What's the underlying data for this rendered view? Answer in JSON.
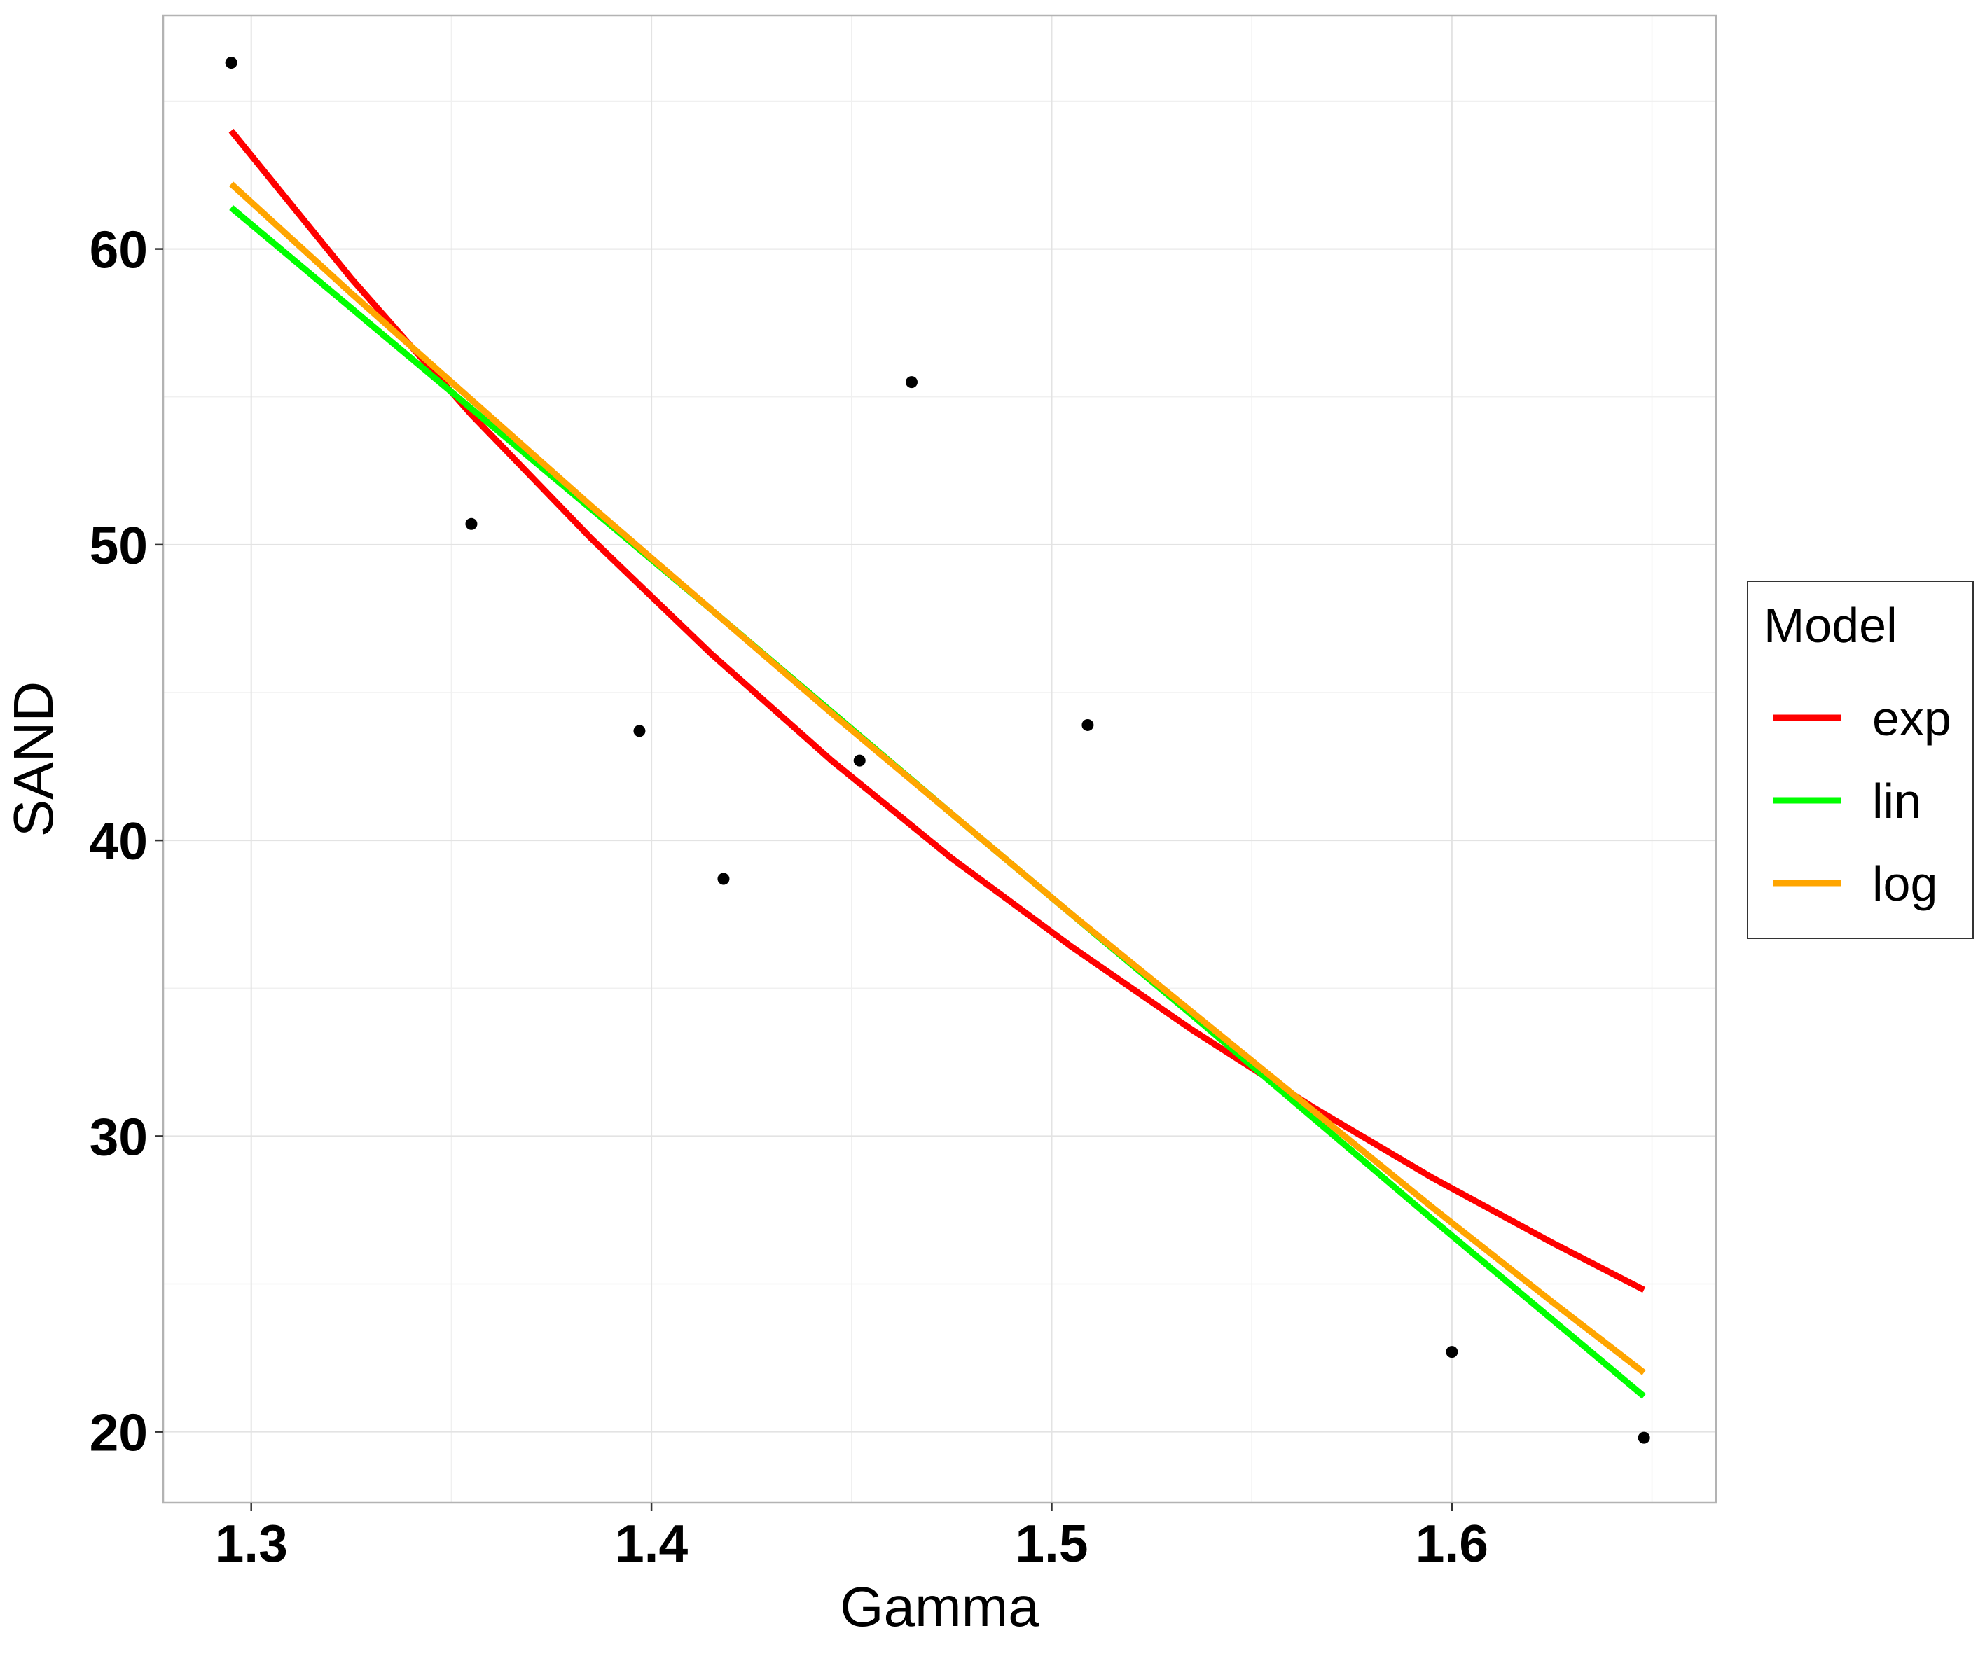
{
  "chart_data": {
    "type": "line",
    "xlabel": "Gamma",
    "ylabel": "SAND",
    "xlim": [
      1.278,
      1.666
    ],
    "ylim": [
      17.6,
      67.9
    ],
    "x_ticks": [
      1.3,
      1.4,
      1.5,
      1.6
    ],
    "x_tick_labels": [
      "1.3",
      "1.4",
      "1.5",
      "1.6"
    ],
    "y_ticks": [
      20,
      30,
      40,
      50,
      60
    ],
    "y_tick_labels": [
      "20",
      "30",
      "40",
      "50",
      "60"
    ],
    "grid": true,
    "legend": {
      "title": "Model",
      "position": "right",
      "entries": [
        {
          "name": "exp",
          "color": "#ff0000"
        },
        {
          "name": "lin",
          "color": "#00ff00"
        },
        {
          "name": "log",
          "color": "#ffa500"
        }
      ]
    },
    "points": {
      "x": [
        1.295,
        1.355,
        1.397,
        1.418,
        1.452,
        1.465,
        1.509,
        1.6,
        1.648
      ],
      "y": [
        66.3,
        50.7,
        43.7,
        38.7,
        42.7,
        55.5,
        43.9,
        22.7,
        19.8
      ]
    },
    "series": [
      {
        "name": "exp",
        "color": "#ff0000",
        "x": [
          1.295,
          1.325,
          1.355,
          1.385,
          1.415,
          1.445,
          1.475,
          1.505,
          1.535,
          1.565,
          1.595,
          1.625,
          1.648
        ],
        "y": [
          64.0,
          59.0,
          54.4,
          50.2,
          46.3,
          42.7,
          39.4,
          36.4,
          33.6,
          31.0,
          28.6,
          26.4,
          24.8
        ]
      },
      {
        "name": "lin",
        "color": "#00ff00",
        "x": [
          1.295,
          1.355,
          1.415,
          1.475,
          1.535,
          1.595,
          1.648
        ],
        "y": [
          61.4,
          54.6,
          47.8,
          40.9,
          34.1,
          27.2,
          21.2
        ]
      },
      {
        "name": "log",
        "color": "#ffa500",
        "x": [
          1.295,
          1.325,
          1.355,
          1.385,
          1.415,
          1.445,
          1.475,
          1.505,
          1.535,
          1.565,
          1.595,
          1.625,
          1.648
        ],
        "y": [
          62.2,
          58.5,
          54.9,
          51.3,
          47.8,
          44.3,
          40.9,
          37.5,
          34.2,
          30.9,
          27.6,
          24.4,
          22.0
        ]
      }
    ]
  }
}
